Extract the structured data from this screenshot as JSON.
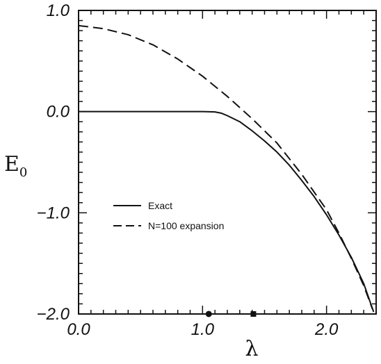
{
  "chart_data": {
    "type": "line",
    "xlabel": "λ",
    "ylabel": {
      "main": "E",
      "sub": "0"
    },
    "xlim": [
      0.0,
      2.4
    ],
    "ylim": [
      -2.0,
      1.0
    ],
    "xticks": [
      {
        "value": 0.0,
        "label": "0.0"
      },
      {
        "value": 1.0,
        "label": "1.0"
      },
      {
        "value": 2.0,
        "label": "2.0"
      }
    ],
    "yticks": [
      {
        "value": 1.0,
        "label": "1.0"
      },
      {
        "value": 0.0,
        "label": "0.0"
      },
      {
        "value": -1.0,
        "label": "−1.0"
      },
      {
        "value": -2.0,
        "label": "−2.0"
      }
    ],
    "grid": false,
    "legend_position": "left-middle",
    "series": [
      {
        "name": "Exact",
        "style": "solid",
        "x": [
          0.0,
          0.5,
          1.0,
          1.1,
          1.15,
          1.2,
          1.3,
          1.4,
          1.5,
          1.6,
          1.7,
          1.8,
          1.9,
          2.0,
          2.1,
          2.2,
          2.3,
          2.38
        ],
        "y": [
          0.0,
          0.0,
          0.0,
          -0.003,
          -0.015,
          -0.04,
          -0.1,
          -0.19,
          -0.29,
          -0.4,
          -0.53,
          -0.68,
          -0.84,
          -1.02,
          -1.22,
          -1.44,
          -1.7,
          -1.98
        ]
      },
      {
        "name": "N=100 expansion",
        "style": "dashed",
        "x": [
          0.0,
          0.2,
          0.4,
          0.6,
          0.8,
          1.0,
          1.2,
          1.4,
          1.6,
          1.8,
          2.0,
          2.1,
          2.2,
          2.3,
          2.37
        ],
        "y": [
          0.85,
          0.82,
          0.76,
          0.66,
          0.52,
          0.35,
          0.15,
          -0.07,
          -0.31,
          -0.62,
          -0.97,
          -1.2,
          -1.45,
          -1.72,
          -1.95
        ]
      }
    ],
    "markers": [
      {
        "shape": "circle",
        "x": 1.05,
        "y": -2.0
      },
      {
        "shape": "square",
        "x": 1.41,
        "y": -2.0
      }
    ]
  }
}
